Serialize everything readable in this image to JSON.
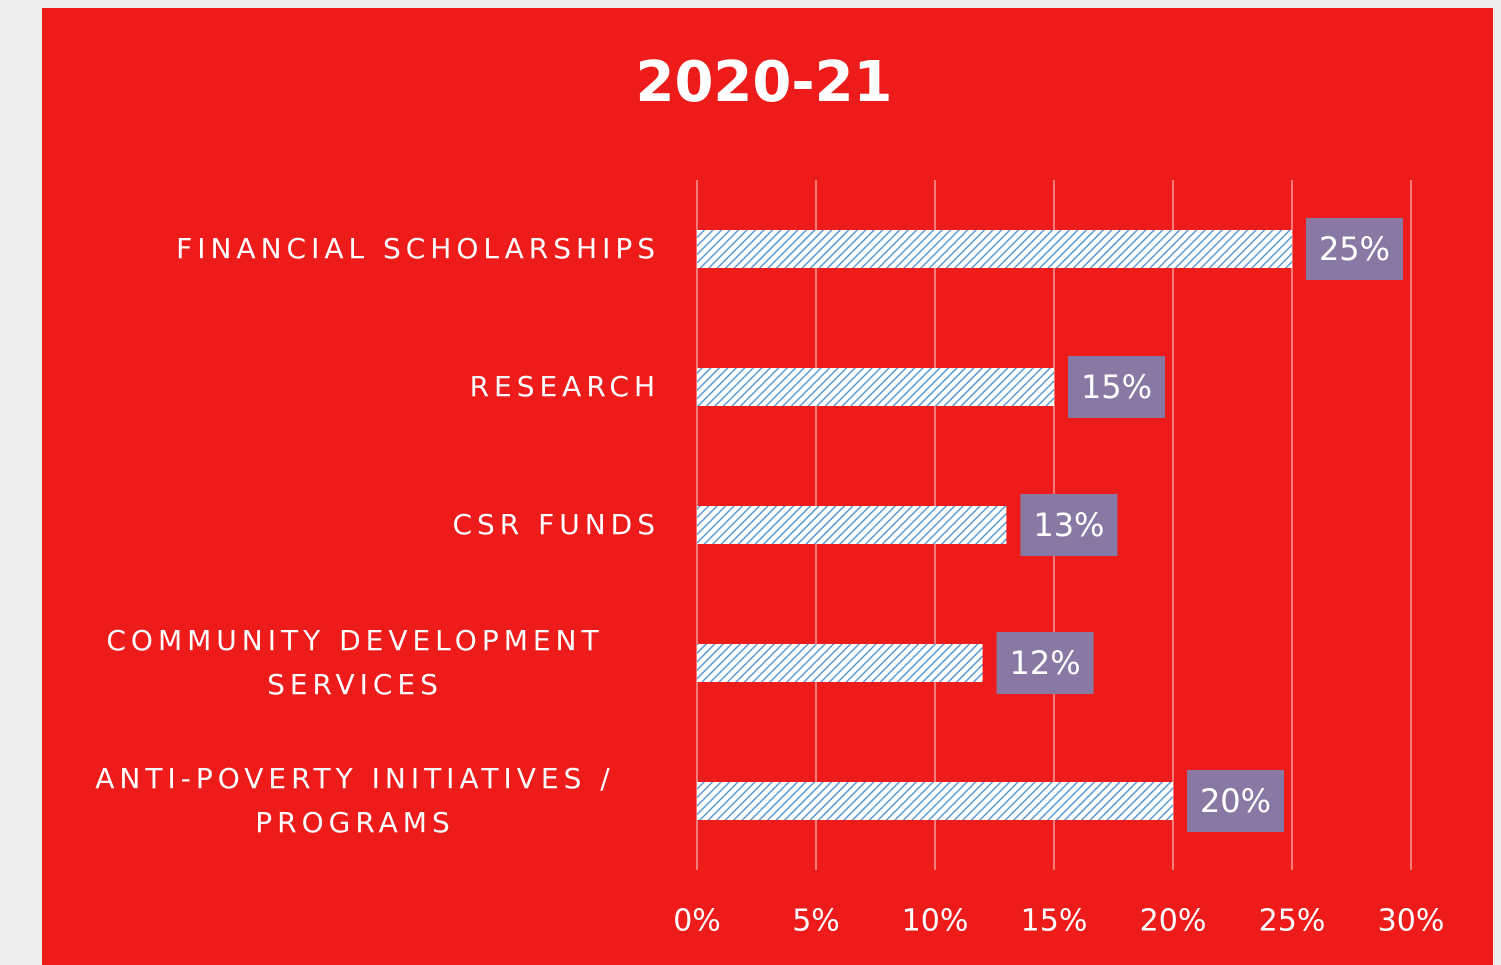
{
  "chart_data": {
    "type": "bar",
    "orientation": "horizontal",
    "title": "2020-21",
    "categories": [
      "FINANCIAL SCHOLARSHIPS",
      "RESEARCH",
      "CSR FUNDS",
      "COMMUNITY DEVELOPMENT SERVICES",
      "ANTI-POVERTY INITIATIVES / PROGRAMS"
    ],
    "values": [
      25,
      15,
      13,
      12,
      20
    ],
    "value_labels": [
      "25%",
      "15%",
      "13%",
      "12%",
      "20%"
    ],
    "color": "#5b9bd5",
    "xlim": [
      0,
      30
    ],
    "xticks": [
      {
        "value": 0,
        "label": "0%"
      },
      {
        "value": 5,
        "label": "5%"
      },
      {
        "value": 10,
        "label": "10%"
      },
      {
        "value": 15,
        "label": "15%"
      },
      {
        "value": 20,
        "label": "20%"
      },
      {
        "value": 25,
        "label": "25%"
      },
      {
        "value": 30,
        "label": "30%"
      }
    ],
    "grid": true
  }
}
